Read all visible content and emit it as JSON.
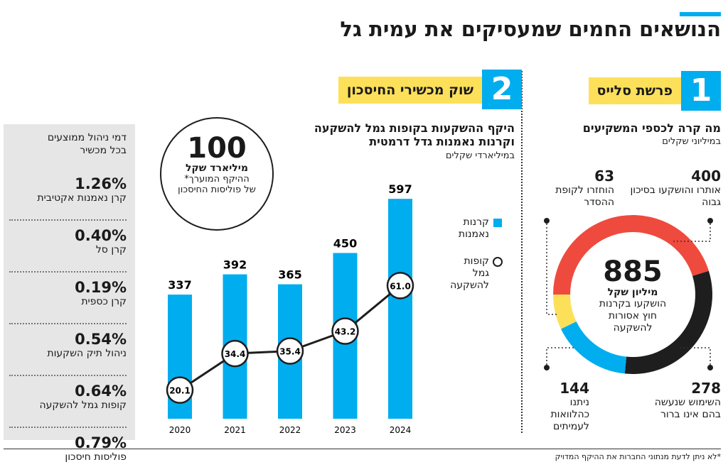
{
  "title": "הנושאים החמים שמעסיקים את עמית גל",
  "section1": {
    "number": "1",
    "label": "פרשת סלייס",
    "heading": "מה קרה לכספי המשקיעים",
    "unit": "במיליוני שקלים",
    "center_value": "885",
    "center_unit": "מיליון שקל",
    "center_text": "הושקעו בקרנות חוץ אסורות להשקעה",
    "segments": [
      {
        "value": 400,
        "label": "אותרו והושקעו בסיכון גבוה",
        "color": "#ef4a3e"
      },
      {
        "value": 278,
        "label": "השימוש שנעשה בהם אינו ברור",
        "color": "#1e1e1e"
      },
      {
        "value": 144,
        "label": "ניתנו כהלוואות לעמיתים",
        "color": "#00adef"
      },
      {
        "value": 63,
        "label": "הוחזרו לקופת ההסדר",
        "color": "#fde05a"
      }
    ]
  },
  "section2": {
    "number": "2",
    "label": "שוק מכשירי החיסכון",
    "heading_line1": "היקף ההשקעות בקופות גמל להשקעה",
    "heading_line2": "וקרנות נאמנות גדל דרמטית",
    "unit": "במיליארדי שקלים",
    "callout_value": "100",
    "callout_unit": "מיליארד שקל",
    "callout_text": "ההיקף המוערך* של פוליסות החיסכון"
  },
  "chart_data": {
    "type": "bar",
    "categories": [
      "2020",
      "2021",
      "2022",
      "2023",
      "2024"
    ],
    "series": [
      {
        "name": "קרנות נאמנות",
        "type": "bar",
        "values": [
          337,
          392,
          365,
          450,
          597
        ],
        "color": "#00adef"
      },
      {
        "name": "קופות גמל להשקעה",
        "type": "line",
        "values": [
          20.1,
          34.4,
          35.4,
          43.2,
          61.0
        ],
        "color": "#1e1e1e"
      }
    ],
    "legend_position": "right",
    "grid": false
  },
  "fees": {
    "heading": "דמי ניהול ממוצעים בכל מכשיר",
    "items": [
      {
        "value": "1.26%",
        "name": "קרן נאמנות אקטיבית"
      },
      {
        "value": "0.40%",
        "name": "קרן סל"
      },
      {
        "value": "0.19%",
        "name": "קרן כספית"
      },
      {
        "value": "0.54%",
        "name": "ניהול תיק השקעות"
      },
      {
        "value": "0.64%",
        "name": "קופות גמל להשקעה"
      },
      {
        "value": "0.79%",
        "name": "פוליסות חיסכון"
      }
    ]
  },
  "footnote": "*לא ניתן לדעת מנתוני החברות את ההיקף המדויק"
}
